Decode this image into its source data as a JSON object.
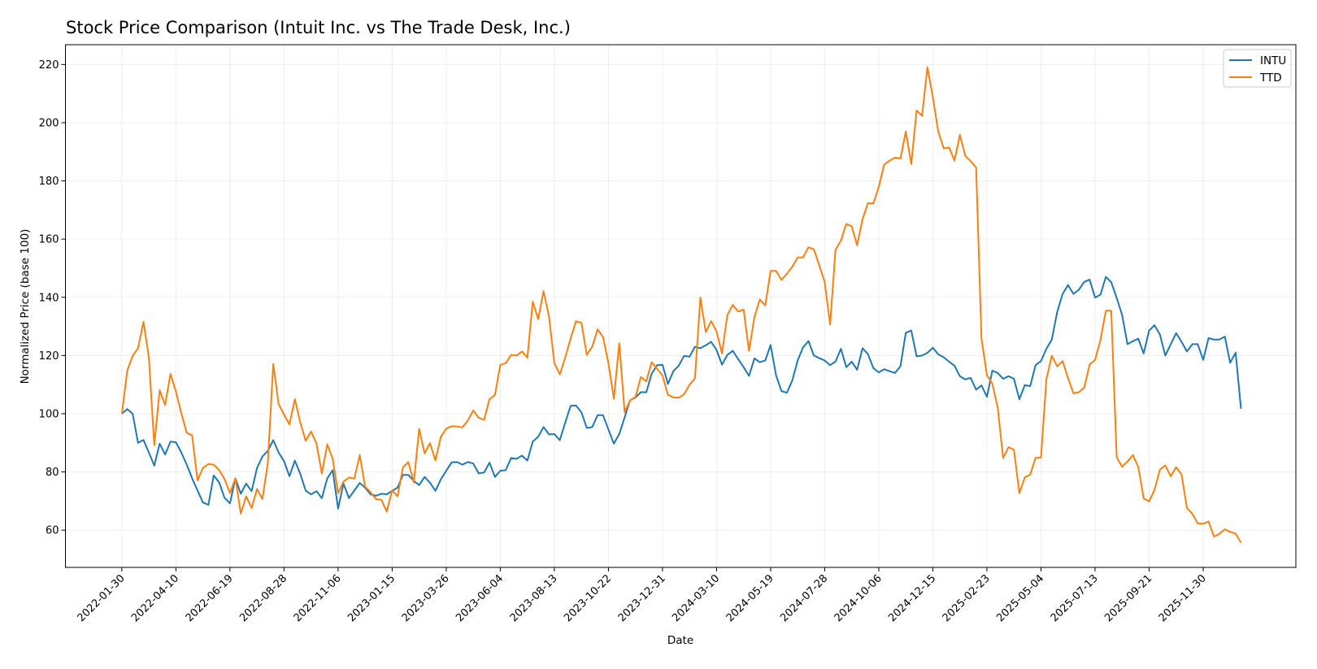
{
  "chart_data": {
    "type": "line",
    "title": "Stock Price Comparison (Intuit Inc. vs The Trade Desk, Inc.)",
    "xlabel": "Date",
    "ylabel": "Normalized Price (base 100)",
    "xlim": [
      "2021-11-18",
      "2026-03-30"
    ],
    "ylim": [
      47.2,
      226.8
    ],
    "grid": true,
    "legend_position": "top-right",
    "x_ticks": [
      "2022-01-30",
      "2022-04-10",
      "2022-06-19",
      "2022-08-28",
      "2022-11-06",
      "2023-01-15",
      "2023-03-26",
      "2023-06-04",
      "2023-08-13",
      "2023-10-22",
      "2023-12-31",
      "2024-03-10",
      "2024-05-19",
      "2024-07-28",
      "2024-10-06",
      "2024-12-15",
      "2025-02-23",
      "2025-05-04",
      "2025-07-13",
      "2025-09-21",
      "2025-11-30"
    ],
    "y_ticks": [
      60,
      80,
      100,
      120,
      140,
      160,
      180,
      200,
      220
    ],
    "x": [
      "2022-01-30",
      "2022-02-06",
      "2022-02-13",
      "2022-02-20",
      "2022-02-27",
      "2022-03-06",
      "2022-03-13",
      "2022-03-20",
      "2022-03-27",
      "2022-04-03",
      "2022-04-10",
      "2022-04-17",
      "2022-04-24",
      "2022-05-01",
      "2022-05-08",
      "2022-05-15",
      "2022-05-22",
      "2022-05-29",
      "2022-06-05",
      "2022-06-12",
      "2022-06-19",
      "2022-06-26",
      "2022-07-03",
      "2022-07-10",
      "2022-07-17",
      "2022-07-24",
      "2022-07-31",
      "2022-08-07",
      "2022-08-14",
      "2022-08-21",
      "2022-08-28",
      "2022-09-04",
      "2022-09-11",
      "2022-09-18",
      "2022-09-25",
      "2022-10-02",
      "2022-10-09",
      "2022-10-16",
      "2022-10-23",
      "2022-10-30",
      "2022-11-06",
      "2022-11-13",
      "2022-11-20",
      "2022-11-27",
      "2022-12-04",
      "2022-12-11",
      "2022-12-18",
      "2022-12-25",
      "2023-01-01",
      "2023-01-08",
      "2023-01-15",
      "2023-01-22",
      "2023-01-29",
      "2023-02-05",
      "2023-02-12",
      "2023-02-19",
      "2023-02-26",
      "2023-03-05",
      "2023-03-12",
      "2023-03-19",
      "2023-03-26",
      "2023-04-02",
      "2023-04-09",
      "2023-04-16",
      "2023-04-23",
      "2023-04-30",
      "2023-05-07",
      "2023-05-14",
      "2023-05-21",
      "2023-05-28",
      "2023-06-04",
      "2023-06-11",
      "2023-06-18",
      "2023-06-25",
      "2023-07-02",
      "2023-07-09",
      "2023-07-16",
      "2023-07-23",
      "2023-07-30",
      "2023-08-06",
      "2023-08-13",
      "2023-08-20",
      "2023-08-27",
      "2023-09-03",
      "2023-09-10",
      "2023-09-17",
      "2023-09-24",
      "2023-10-01",
      "2023-10-08",
      "2023-10-15",
      "2023-10-22",
      "2023-10-29",
      "2023-11-05",
      "2023-11-12",
      "2023-11-19",
      "2023-11-26",
      "2023-12-03",
      "2023-12-10",
      "2023-12-17",
      "2023-12-24",
      "2023-12-31",
      "2024-01-07",
      "2024-01-14",
      "2024-01-21",
      "2024-01-28",
      "2024-02-04",
      "2024-02-11",
      "2024-02-18",
      "2024-02-25",
      "2024-03-03",
      "2024-03-10",
      "2024-03-17",
      "2024-03-24",
      "2024-03-31",
      "2024-04-07",
      "2024-04-14",
      "2024-04-21",
      "2024-04-28",
      "2024-05-05",
      "2024-05-12",
      "2024-05-19",
      "2024-05-26",
      "2024-06-02",
      "2024-06-09",
      "2024-06-16",
      "2024-06-23",
      "2024-06-30",
      "2024-07-07",
      "2024-07-14",
      "2024-07-21",
      "2024-07-28",
      "2024-08-04",
      "2024-08-11",
      "2024-08-18",
      "2024-08-25",
      "2024-09-01",
      "2024-09-08",
      "2024-09-15",
      "2024-09-22",
      "2024-09-29",
      "2024-10-06",
      "2024-10-13",
      "2024-10-20",
      "2024-10-27",
      "2024-11-03",
      "2024-11-10",
      "2024-11-17",
      "2024-11-24",
      "2024-12-01",
      "2024-12-08",
      "2024-12-15",
      "2024-12-22",
      "2024-12-29",
      "2025-01-05",
      "2025-01-12",
      "2025-01-19",
      "2025-01-26",
      "2025-02-02",
      "2025-02-09",
      "2025-02-16",
      "2025-02-23",
      "2025-03-02",
      "2025-03-09",
      "2025-03-16",
      "2025-03-23",
      "2025-03-30",
      "2025-04-06",
      "2025-04-13",
      "2025-04-20",
      "2025-04-27",
      "2025-05-04",
      "2025-05-11",
      "2025-05-18",
      "2025-05-25",
      "2025-06-01",
      "2025-06-08",
      "2025-06-15",
      "2025-06-22",
      "2025-06-29",
      "2025-07-06",
      "2025-07-13",
      "2025-07-20",
      "2025-07-27",
      "2025-08-03",
      "2025-08-10",
      "2025-08-17",
      "2025-08-24",
      "2025-08-31",
      "2025-09-07",
      "2025-09-14",
      "2025-09-21",
      "2025-09-28",
      "2025-10-05",
      "2025-10-12",
      "2025-10-19",
      "2025-10-26",
      "2025-11-02",
      "2025-11-09",
      "2025-11-16",
      "2025-11-23",
      "2025-11-30",
      "2025-12-07",
      "2025-12-14",
      "2025-12-21",
      "2025-12-28",
      "2026-01-04",
      "2026-01-11",
      "2026-01-18"
    ],
    "series": [
      {
        "name": "INTU",
        "color": "#1f77b4",
        "values": [
          100,
          101.6,
          100,
          90,
          91,
          86.7,
          82.2,
          89.7,
          86,
          90.4,
          90.2,
          86.7,
          82.5,
          77.8,
          73.6,
          69.5,
          68.7,
          78.8,
          76.4,
          71.1,
          69.2,
          77.8,
          72.5,
          76,
          73.4,
          81.3,
          85.3,
          87.2,
          90.9,
          86.7,
          83.7,
          78.5,
          83.9,
          79.4,
          73.6,
          72.3,
          73.4,
          71,
          77.8,
          80.6,
          67.4,
          76,
          71,
          73.6,
          76.2,
          74.6,
          72.3,
          71.8,
          72.5,
          72.3,
          73.5,
          74.6,
          79,
          79,
          76.9,
          75.5,
          78.3,
          76.3,
          73.5,
          77.4,
          80.4,
          83.3,
          83.4,
          82.5,
          83.4,
          82.9,
          79.5,
          79.8,
          83.2,
          78.3,
          80.4,
          80.6,
          84.8,
          84.5,
          85.6,
          83.9,
          90.4,
          92.1,
          95.4,
          92.9,
          93,
          90.9,
          96.9,
          102.7,
          102.8,
          100.5,
          95.1,
          95.4,
          99.5,
          99.5,
          94.6,
          89.7,
          93,
          98.8,
          104.6,
          105.6,
          107.4,
          107.4,
          113.7,
          116.7,
          116.8,
          110.2,
          114.6,
          116.5,
          119.9,
          119.6,
          123,
          122.5,
          123.5,
          124.7,
          121.9,
          116.9,
          120.2,
          121.6,
          118.8,
          116,
          113,
          119,
          117.7,
          118.3,
          123.6,
          113.2,
          107.8,
          107.2,
          111.4,
          118.3,
          122.8,
          125,
          120,
          119.1,
          118.3,
          116.7,
          117.9,
          122.3,
          116,
          117.9,
          115.1,
          122.5,
          120.5,
          115.7,
          114.2,
          115.3,
          114.6,
          114,
          116.3,
          127.8,
          128.6,
          119.7,
          120,
          120.9,
          122.7,
          120.4,
          119.4,
          117.9,
          116.5,
          112.9,
          111.8,
          112.3,
          108.3,
          109.7,
          105.8,
          114.8,
          114,
          112,
          112.9,
          112,
          105,
          109.8,
          109.5,
          116.7,
          118.1,
          122.3,
          125.5,
          134.9,
          141.2,
          144.2,
          141.2,
          142.6,
          145.3,
          146.1,
          139.9,
          140.9,
          147,
          145.2,
          139.8,
          134,
          123.9,
          124.9,
          125.8,
          120.7,
          128.6,
          130.4,
          127.2,
          120,
          123.9,
          127.7,
          124.7,
          121.4,
          123.9,
          123.9,
          118.5,
          126,
          125.5,
          125.5,
          126.5,
          117.5,
          121,
          101.7
        ]
      },
      {
        "name": "TTD",
        "color": "#ff7f0e",
        "values": [
          100,
          114.8,
          119.9,
          122.5,
          131.6,
          119.3,
          89.2,
          108.1,
          103,
          113.7,
          107.6,
          100.2,
          93.4,
          92.6,
          77.1,
          81.4,
          82.7,
          82.5,
          80.6,
          77.6,
          72.7,
          77.8,
          65.7,
          71.6,
          67.6,
          74.1,
          70.7,
          83,
          117.1,
          103.3,
          99.7,
          96.3,
          105,
          97.1,
          90.7,
          93.9,
          89.7,
          79.5,
          89.5,
          84.5,
          72.7,
          76.7,
          78.1,
          77.7,
          85.8,
          75,
          73,
          70.7,
          70.4,
          66.4,
          73.7,
          71.6,
          81.6,
          83.4,
          76.4,
          94.8,
          86.4,
          89.9,
          83.9,
          92,
          94.9,
          95.7,
          95.6,
          95.3,
          97.7,
          101.1,
          98.6,
          97.9,
          105,
          106.4,
          116.8,
          117.4,
          120.2,
          120,
          121.4,
          119.3,
          138.5,
          132.5,
          142.1,
          133.4,
          117.4,
          113.5,
          119.3,
          125.8,
          131.8,
          131.2,
          120.2,
          123,
          129,
          126.3,
          117.4,
          105.1,
          124.2,
          100.5,
          104.6,
          105.8,
          112.6,
          111.1,
          117.7,
          115.4,
          113.2,
          106.5,
          105.6,
          105.5,
          106.7,
          110,
          112.1,
          139.9,
          128.1,
          131.8,
          128.3,
          120.7,
          133.9,
          137.4,
          135.1,
          135.8,
          121.6,
          133.2,
          139.3,
          137.2,
          149.1,
          149.1,
          146,
          148.1,
          150.5,
          153.7,
          153.7,
          157.2,
          156.5,
          150.9,
          145.3,
          130.6,
          156.3,
          159.5,
          165.2,
          164.4,
          157.9,
          166.9,
          172.3,
          172.3,
          177.9,
          185.6,
          187,
          188,
          187.7,
          197,
          185.8,
          204.2,
          202.4,
          219.1,
          208.7,
          197,
          191.2,
          191.5,
          187,
          195.8,
          188.6,
          186.8,
          184.6,
          125.8,
          113.2,
          110.4,
          102,
          84.8,
          88.5,
          87.6,
          72.7,
          78.1,
          79.1,
          84.8,
          85,
          111.8,
          119.9,
          116.3,
          118.1,
          112.3,
          107,
          107.4,
          109,
          116.9,
          118.5,
          125.3,
          135.4,
          135.4,
          85.1,
          81.8,
          83.6,
          85.8,
          81.7,
          70.9,
          69.9,
          73.8,
          80.8,
          82.2,
          78.5,
          81.6,
          79.1,
          67.6,
          65.6,
          62.3,
          62.2,
          63,
          57.8,
          58.7,
          60.3,
          59.4,
          58.8,
          55.7
        ]
      }
    ]
  }
}
